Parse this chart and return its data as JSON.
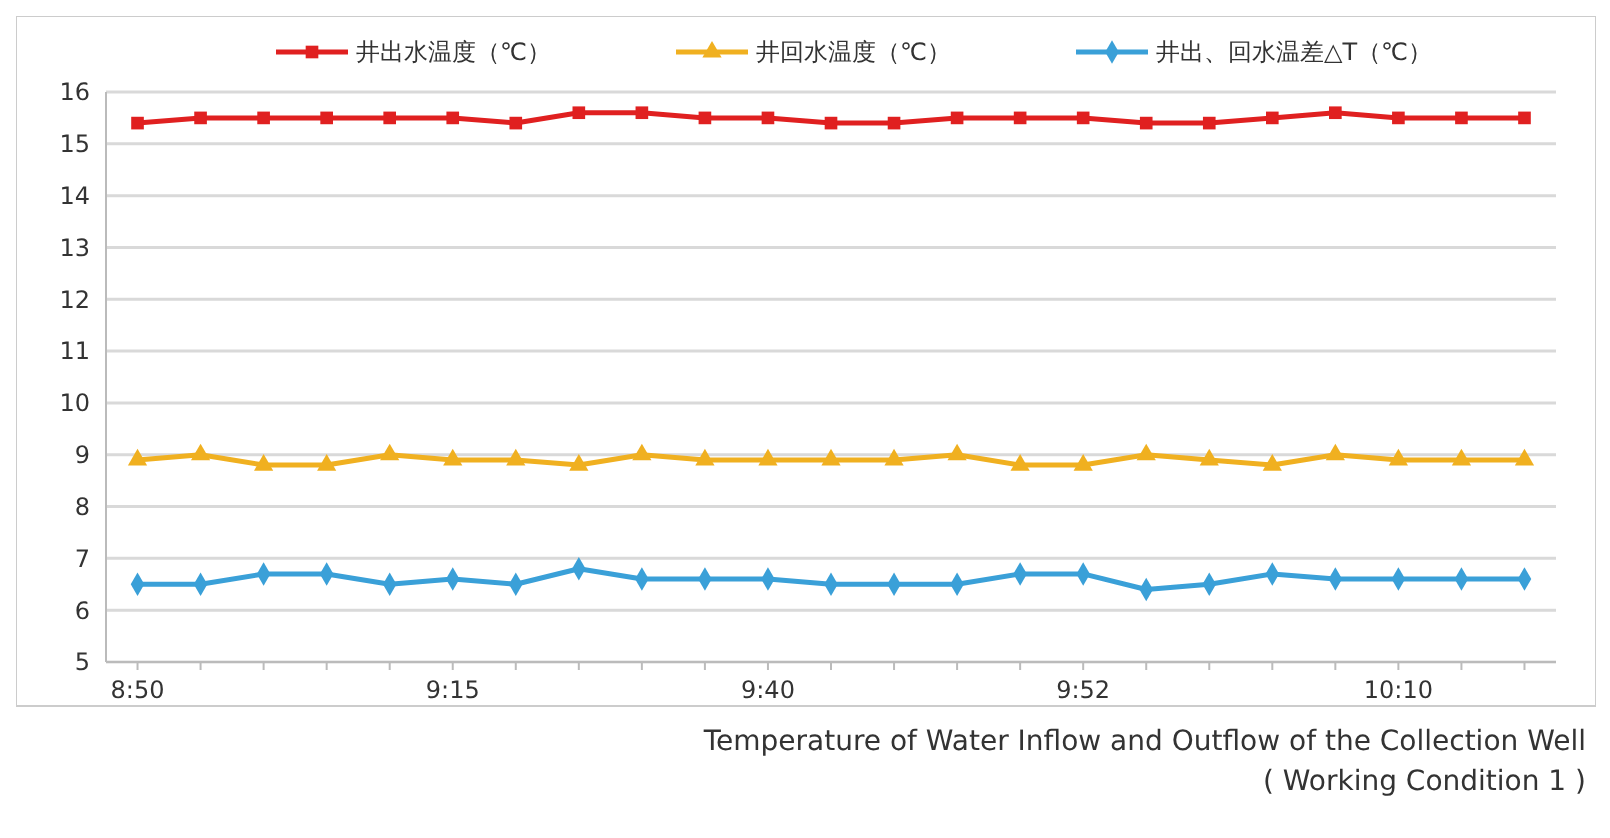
{
  "chart_data": {
    "type": "line",
    "categories": [
      "8:50",
      null,
      null,
      null,
      null,
      "9:15",
      null,
      null,
      null,
      null,
      "9:40",
      null,
      null,
      null,
      null,
      "9:52",
      null,
      null,
      null,
      null,
      "10:10",
      null,
      null
    ],
    "series": [
      {
        "name": "井出水温度（℃）",
        "color": "#e02020",
        "marker": "square",
        "values": [
          15.4,
          15.5,
          15.5,
          15.5,
          15.5,
          15.5,
          15.4,
          15.6,
          15.6,
          15.5,
          15.5,
          15.4,
          15.4,
          15.5,
          15.5,
          15.5,
          15.4,
          15.4,
          15.5,
          15.6,
          15.5,
          15.5,
          15.5
        ]
      },
      {
        "name": "井回水温度（℃）",
        "color": "#f0b020",
        "marker": "triangle",
        "values": [
          8.9,
          9.0,
          8.8,
          8.8,
          9.0,
          8.9,
          8.9,
          8.8,
          9.0,
          8.9,
          8.9,
          8.9,
          8.9,
          9.0,
          8.8,
          8.8,
          9.0,
          8.9,
          8.8,
          9.0,
          8.9,
          8.9,
          8.9
        ]
      },
      {
        "name": "井出、回水温差△T（℃）",
        "color": "#3aa0d8",
        "marker": "diamond",
        "values": [
          6.5,
          6.5,
          6.7,
          6.7,
          6.5,
          6.6,
          6.5,
          6.8,
          6.6,
          6.6,
          6.6,
          6.5,
          6.5,
          6.5,
          6.7,
          6.7,
          6.4,
          6.5,
          6.7,
          6.6,
          6.6,
          6.6,
          6.6
        ]
      }
    ],
    "ylim": [
      5,
      16
    ],
    "yticks": [
      5,
      6,
      7,
      8,
      9,
      10,
      11,
      12,
      13,
      14,
      15,
      16
    ],
    "grid": "y",
    "legend": "top",
    "annotations": [
      "Temperature of Water Inflow and Outflow of the Collection Well",
      "( Working Condition 1 )"
    ]
  }
}
